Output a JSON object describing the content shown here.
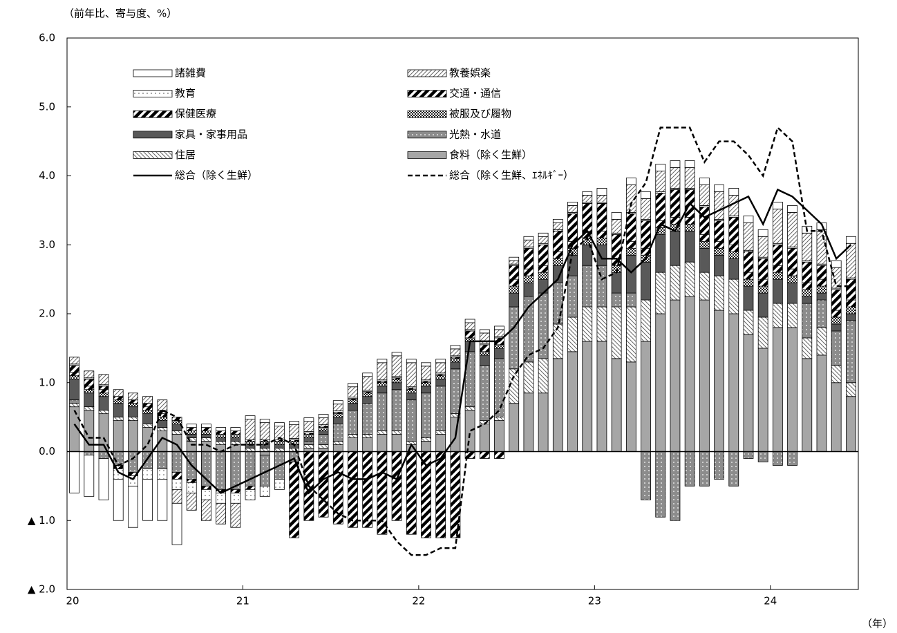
{
  "chart_data": {
    "type": "bar",
    "subtitle": "（前年比、寄与度、%）",
    "x_label": "（年）",
    "categories": [
      "20",
      null,
      null,
      null,
      null,
      null,
      null,
      null,
      null,
      null,
      null,
      null,
      "21",
      null,
      null,
      null,
      null,
      null,
      null,
      null,
      null,
      null,
      null,
      null,
      "22",
      null,
      null,
      null,
      null,
      null,
      null,
      null,
      null,
      null,
      null,
      null,
      "23",
      null,
      null,
      null,
      null,
      null,
      null,
      null,
      null,
      null,
      null,
      null,
      "24",
      null,
      null,
      null,
      null,
      null
    ],
    "ylim": [
      -2,
      6
    ],
    "yticks": [
      {
        "value": 6,
        "label": "6.0"
      },
      {
        "value": 5,
        "label": "5.0"
      },
      {
        "value": 4,
        "label": "4.0"
      },
      {
        "value": 3,
        "label": "3.0"
      },
      {
        "value": 2,
        "label": "2.0"
      },
      {
        "value": 1,
        "label": "1.0"
      },
      {
        "value": 0,
        "label": "0.0"
      },
      {
        "value": -1,
        "label": "▲ 1.0"
      },
      {
        "value": -2,
        "label": "▲ 2.0"
      }
    ],
    "grid": false,
    "series": [
      {
        "name": "諸雑費",
        "type": "bar",
        "color": "#ffffff",
        "pattern": "solid",
        "values": [
          -0.6,
          -0.6,
          -0.6,
          -0.6,
          -0.6,
          -0.6,
          -0.6,
          -0.6,
          0.05,
          0.05,
          0.05,
          0.05,
          0.05,
          0.05,
          0.05,
          0.05,
          0.05,
          0.05,
          0.05,
          0.05,
          0.05,
          0.05,
          0.05,
          0.05,
          0.05,
          0.05,
          0.05,
          0.05,
          0.05,
          0.05,
          0.05,
          0.05,
          0.05,
          0.05,
          0.05,
          0.05,
          0.1,
          0.1,
          0.1,
          0.1,
          0.1,
          0.1,
          0.1,
          0.1,
          0.1,
          0.1,
          0.1,
          0.1,
          0.1,
          0.1,
          0.1,
          0.1,
          0.1,
          0.1
        ]
      },
      {
        "name": "教養娯楽",
        "type": "bar",
        "color": "#666666",
        "pattern": "hatch",
        "values": [
          0.1,
          0.1,
          0.15,
          0.1,
          0.1,
          0.1,
          0.15,
          -0.2,
          -0.25,
          -0.3,
          -0.3,
          -0.35,
          0.3,
          0.25,
          0.2,
          0.2,
          0.15,
          0.1,
          0.1,
          0.15,
          0.2,
          0.25,
          0.3,
          0.35,
          0.2,
          0.15,
          0.1,
          0.1,
          0.15,
          0.1,
          0.05,
          0.1,
          0.1,
          0.1,
          0.1,
          0.1,
          0.1,
          0.2,
          0.4,
          0.3,
          0.3,
          0.3,
          0.3,
          0.3,
          0.4,
          0.3,
          0.4,
          0.3,
          0.5,
          0.5,
          0.4,
          0.5,
          0.3,
          0.5
        ]
      },
      {
        "name": "教育",
        "type": "bar",
        "color": "#444444",
        "pattern": "dots",
        "values": [
          0.02,
          0.02,
          0.02,
          -0.15,
          -0.15,
          -0.15,
          -0.15,
          -0.15,
          -0.15,
          -0.15,
          -0.15,
          -0.15,
          -0.15,
          -0.15,
          -0.15,
          0.02,
          0.02,
          0.02,
          0.02,
          0.02,
          0.02,
          0.02,
          0.02,
          0.02,
          0.02,
          0.02,
          0.02,
          0.02,
          0.02,
          0.02,
          0.02,
          0.02,
          0.02,
          0.02,
          0.02,
          0.02,
          0.02,
          0.02,
          0.02,
          0.02,
          0.02,
          0.02,
          0.02,
          0.02,
          0.02,
          0.02,
          0.02,
          0.02,
          0.02,
          0.02,
          0.02,
          0.02,
          0.02,
          0.02
        ]
      },
      {
        "name": "交通・通信",
        "type": "bar",
        "color": "#000000",
        "pattern": "stripes",
        "values": [
          0.1,
          0.1,
          0.05,
          -0.05,
          -0.05,
          0.05,
          0.05,
          -0.1,
          -0.05,
          -0.05,
          -0.05,
          -0.05,
          -0.05,
          0,
          0,
          -1.1,
          -1.0,
          -0.95,
          -1.05,
          -1.1,
          -1.1,
          -1.2,
          -1.0,
          -1.2,
          -1.25,
          -1.25,
          -1.25,
          -0.1,
          -0.1,
          -0.1,
          0.2,
          0.3,
          0.3,
          0.3,
          0.4,
          0.4,
          0.4,
          0.35,
          0.4,
          0.4,
          0.4,
          0.4,
          0.4,
          0.4,
          0.3,
          0.4,
          0.3,
          0.3,
          0.3,
          0.3,
          0.3,
          0.2,
          0.3,
          0.3
        ]
      },
      {
        "name": "保健医療",
        "type": "bar",
        "color": "#000000",
        "pattern": "stripes",
        "values": [
          0.05,
          0.05,
          0.05,
          0.05,
          0.05,
          0.05,
          0.05,
          0.05,
          0.05,
          0.05,
          0.05,
          0.05,
          0.02,
          0.02,
          0.02,
          0.02,
          0.02,
          0.02,
          0.02,
          0.02,
          0.02,
          0.02,
          0.02,
          0.02,
          0.02,
          0.02,
          0.02,
          0.1,
          0.1,
          0.1,
          0.1,
          0.1,
          0.1,
          0.1,
          0.1,
          0.1,
          0.1,
          0.1,
          0.1,
          0.1,
          0.1,
          0.1,
          0.1,
          0.1,
          0.1,
          0.1,
          0.1,
          0.1,
          0.1,
          0.1,
          0.1,
          0.1,
          0.1,
          0.1
        ]
      },
      {
        "name": "被服及び履物",
        "type": "bar",
        "color": "#222222",
        "pattern": "checker",
        "values": [
          0.05,
          0.05,
          0.05,
          0.05,
          0.05,
          0.05,
          0.05,
          0.05,
          0.05,
          0.05,
          0.05,
          0.05,
          0.05,
          0.05,
          0.05,
          0.05,
          0.05,
          0.05,
          0.05,
          0.05,
          0.05,
          0.05,
          0.05,
          0.05,
          0.05,
          0.05,
          0.05,
          0.05,
          0.05,
          0.05,
          0.1,
          0.1,
          0.1,
          0.1,
          0.1,
          0.1,
          0.1,
          0.1,
          0.1,
          0.1,
          0.1,
          0.1,
          0.1,
          0.1,
          0.1,
          0.1,
          0.1,
          0.1,
          0.1,
          0.1,
          0.1,
          0.1,
          0.1,
          0.1
        ]
      },
      {
        "name": "家具・家事用品",
        "type": "bar",
        "color": "#595959",
        "pattern": "solid",
        "values": [
          0.3,
          0.2,
          0.2,
          0.2,
          0.15,
          0.15,
          0.1,
          0.1,
          0.05,
          0.05,
          0.05,
          0.05,
          0.05,
          0.05,
          0.05,
          0.05,
          0.05,
          0.05,
          0.1,
          0.1,
          0.1,
          0.1,
          0.1,
          0.1,
          0.1,
          0.1,
          0.1,
          0.15,
          0.15,
          0.15,
          0.2,
          0.2,
          0.2,
          0.25,
          0.3,
          0.3,
          0.3,
          0.3,
          0.55,
          0.55,
          0.55,
          0.5,
          0.45,
          0.35,
          0.3,
          0.3,
          0.35,
          0.35,
          0.35,
          0.3,
          0.1,
          0.1,
          0.1,
          0.1
        ]
      },
      {
        "name": "光熱・水道",
        "type": "bar",
        "color": "#8c8c8c",
        "pattern": "dots-inv",
        "values": [
          0.05,
          -0.05,
          -0.1,
          -0.2,
          -0.3,
          -0.25,
          -0.25,
          -0.3,
          -0.4,
          -0.5,
          -0.55,
          -0.55,
          -0.5,
          -0.45,
          -0.4,
          -0.15,
          0.05,
          0.15,
          0.25,
          0.35,
          0.45,
          0.55,
          0.6,
          0.6,
          0.65,
          0.65,
          0.65,
          0.8,
          0.8,
          0.85,
          0.9,
          0.95,
          0.95,
          0.6,
          0.6,
          0.6,
          0.6,
          0.2,
          0.2,
          -0.7,
          -0.95,
          -1.0,
          -0.5,
          -0.5,
          -0.4,
          -0.5,
          -0.1,
          -0.15,
          -0.2,
          -0.2,
          0.5,
          0.4,
          0.5,
          0.9
        ]
      },
      {
        "name": "住居",
        "type": "bar",
        "color": "#666666",
        "pattern": "hatch-back",
        "values": [
          0.05,
          0.05,
          0.05,
          0.05,
          0.05,
          0.05,
          0.05,
          0.05,
          0.05,
          0.05,
          0.05,
          0.05,
          0.05,
          0.05,
          0.05,
          0.05,
          0.05,
          0.05,
          0.05,
          0.05,
          0.05,
          0.05,
          0.05,
          0.05,
          0.05,
          0.05,
          0.05,
          0.05,
          0.05,
          0.05,
          0.5,
          0.45,
          0.5,
          0.5,
          0.5,
          0.5,
          0.5,
          0.75,
          0.8,
          0.6,
          0.6,
          0.5,
          0.5,
          0.4,
          0.5,
          0.5,
          0.35,
          0.45,
          0.35,
          0.35,
          0.3,
          0.4,
          0.25,
          0.2
        ]
      },
      {
        "name": "食料（除く生鮮）",
        "type": "bar",
        "color": "#a6a6a6",
        "pattern": "solid",
        "values": [
          0.65,
          0.6,
          0.55,
          0.45,
          0.45,
          0.35,
          0.3,
          0.25,
          0.15,
          0.15,
          0.1,
          0.1,
          0,
          -0.05,
          0,
          0,
          0.05,
          0.05,
          0.1,
          0.2,
          0.2,
          0.25,
          0.25,
          0.1,
          0.15,
          0.25,
          0.5,
          0.6,
          0.4,
          0.45,
          0.7,
          0.85,
          0.85,
          1.35,
          1.45,
          1.6,
          1.6,
          1.35,
          1.3,
          1.6,
          2.0,
          2.2,
          2.25,
          2.2,
          2.05,
          2.0,
          1.7,
          1.5,
          1.8,
          1.8,
          1.35,
          1.4,
          1.0,
          0.8
        ]
      },
      {
        "name": "総合（除く生鮮）",
        "type": "line",
        "color": "#000000",
        "dashed": false,
        "values": [
          0.4,
          0.1,
          0.1,
          -0.3,
          -0.4,
          -0.1,
          0.2,
          0.1,
          -0.2,
          -0.4,
          -0.6,
          -0.5,
          -0.4,
          -0.3,
          -0.2,
          -0.1,
          -0.6,
          -0.4,
          -0.3,
          -0.4,
          -0.4,
          -0.3,
          -0.4,
          0.1,
          -0.2,
          -0.1,
          0.2,
          1.6,
          1.6,
          1.6,
          1.8,
          2.1,
          2.3,
          2.5,
          3.0,
          3.2,
          2.8,
          2.8,
          2.6,
          2.8,
          3.3,
          3.2,
          3.6,
          3.4,
          3.5,
          3.6,
          3.7,
          3.3,
          3.8,
          3.7,
          3.5,
          3.3,
          2.8,
          3.0
        ]
      },
      {
        "name": "総合（除く生鮮、ｴﾈﾙｷﾞｰ）",
        "type": "line",
        "color": "#000000",
        "dashed": true,
        "values": [
          0.6,
          0.2,
          0.2,
          -0.2,
          -0.1,
          0.1,
          0.6,
          0.5,
          0.1,
          0.1,
          0,
          0.1,
          0.1,
          0.1,
          0.2,
          0.1,
          -0.5,
          -0.7,
          -0.9,
          -1.0,
          -1.0,
          -1.0,
          -1.3,
          -1.5,
          -1.5,
          -1.4,
          -1.4,
          0.3,
          0.4,
          0.6,
          1.1,
          1.4,
          1.5,
          1.8,
          2.9,
          3.1,
          2.5,
          2.6,
          3.6,
          3.9,
          4.7,
          4.7,
          4.7,
          4.2,
          4.5,
          4.5,
          4.3,
          4.0,
          4.7,
          4.5,
          3.2,
          3.2,
          2.4,
          2.4
        ]
      }
    ]
  }
}
